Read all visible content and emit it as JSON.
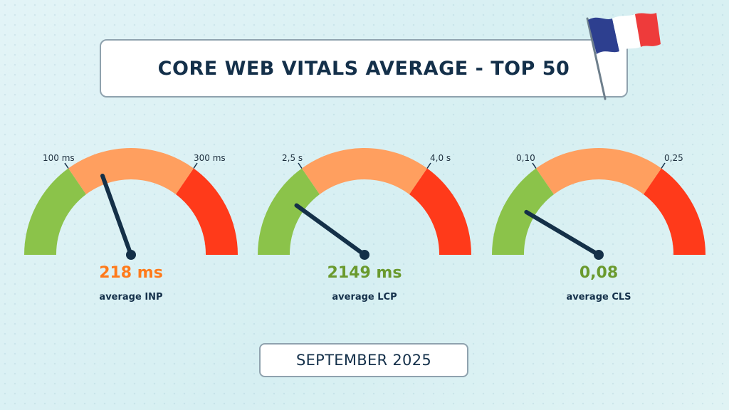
{
  "title": "CORE WEB VITALS AVERAGE - TOP 50",
  "flag": {
    "icon": "france-flag-icon",
    "colors": [
      "#2d3f8f",
      "#ffffff",
      "#ee3b3b"
    ]
  },
  "colors": {
    "good": "#8bc34a",
    "needs_improvement": "#ff9f5f",
    "poor": "#ff3a1a",
    "needle": "#143048",
    "text_dark": "#14304a"
  },
  "gauges": [
    {
      "metric_label": "average INP",
      "value_text": "218 ms",
      "value_color": "#ff7a1a",
      "threshold_low_label": "100 ms",
      "threshold_high_label": "300 ms",
      "needle_fraction": 0.39
    },
    {
      "metric_label": "average LCP",
      "value_text": "2149 ms",
      "value_color": "#6a9a2e",
      "threshold_low_label": "2,5 s",
      "threshold_high_label": "4,0 s",
      "needle_fraction": 0.2
    },
    {
      "metric_label": "average CLS",
      "value_text": "0,08",
      "value_color": "#6a9a2e",
      "threshold_low_label": "0,10",
      "threshold_high_label": "0,25",
      "needle_fraction": 0.17
    }
  ],
  "footer_date": "SEPTEMBER 2025"
}
